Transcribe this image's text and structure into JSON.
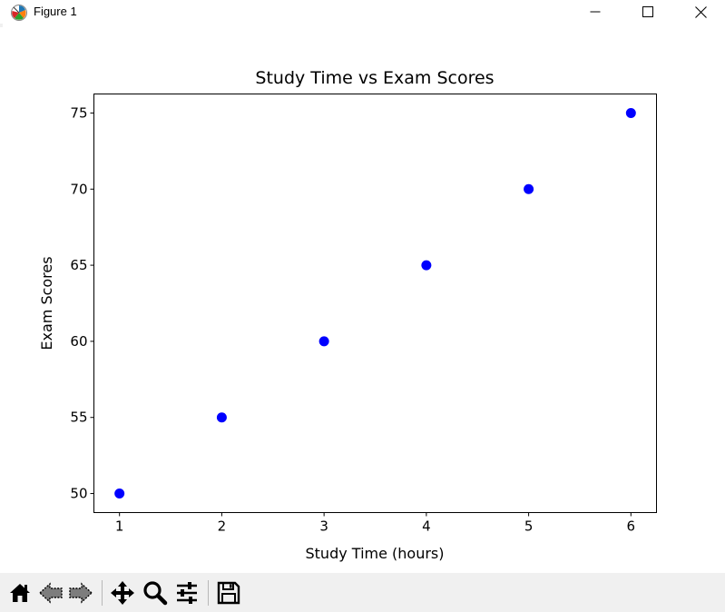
{
  "window": {
    "title": "Figure 1",
    "icons": [
      "matplotlib-logo-icon",
      "minimize-icon",
      "maximize-icon",
      "close-icon"
    ]
  },
  "toolbar": {
    "icons": [
      "home-icon",
      "back-icon",
      "forward-icon",
      "pan-icon",
      "zoom-icon",
      "configure-subplots-icon",
      "save-icon"
    ]
  },
  "chart_data": {
    "type": "scatter",
    "title": "Study Time vs Exam Scores",
    "xlabel": "Study Time (hours)",
    "ylabel": "Exam Scores",
    "x": [
      1,
      2,
      3,
      4,
      5,
      6
    ],
    "y": [
      50,
      55,
      60,
      65,
      70,
      75
    ],
    "xlim": [
      0.75,
      6.25
    ],
    "ylim": [
      48.75,
      76.25
    ],
    "xticks": [
      1,
      2,
      3,
      4,
      5,
      6
    ],
    "yticks": [
      50,
      55,
      60,
      65,
      70,
      75
    ],
    "marker_color": "#0000ff",
    "grid": false,
    "legend": "none"
  }
}
